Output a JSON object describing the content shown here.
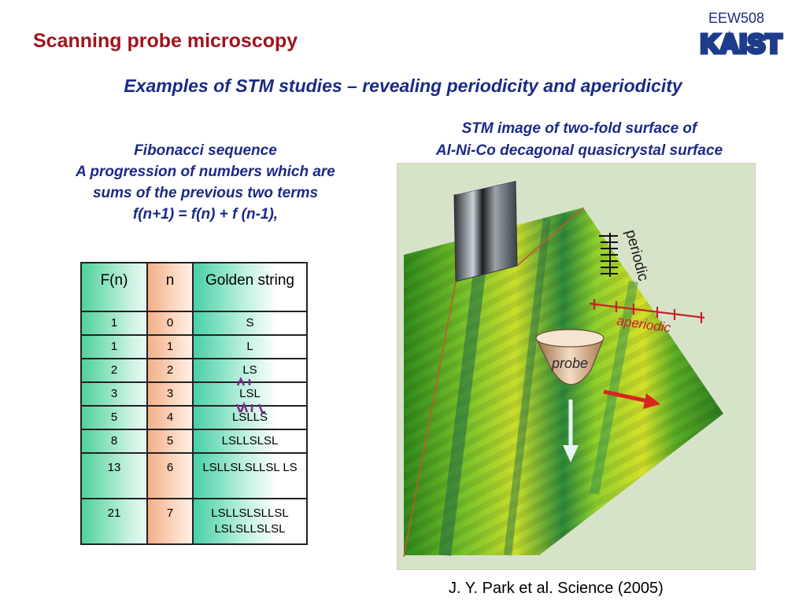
{
  "header": {
    "course_code": "EEW508",
    "logo_text": "KAIST",
    "title": "Scanning probe microscopy"
  },
  "subtitle": "Examples of STM studies – revealing periodicity and aperiodicity",
  "fibonacci": {
    "heading": "Fibonacci sequence",
    "line1": "A progression of numbers which are",
    "line2": "sums of the previous two terms",
    "formula": "f(n+1) = f(n) + f (n-1),"
  },
  "table": {
    "headers": [
      "F(n)",
      "n",
      "Golden string"
    ],
    "rows": [
      [
        "1",
        "0",
        "S"
      ],
      [
        "1",
        "1",
        "L"
      ],
      [
        "2",
        "2",
        "LS"
      ],
      [
        "3",
        "3",
        "LSL"
      ],
      [
        "5",
        "4",
        "LSLLS"
      ],
      [
        "8",
        "5",
        "LSLLSLSL"
      ],
      [
        "13",
        "6",
        "LSLLSLSLLSL LS"
      ],
      [
        "21",
        "7",
        "LSLLSLSLLSL LSLSLLSLSL"
      ]
    ]
  },
  "stm": {
    "caption_line1": "STM image of two-fold surface of",
    "caption_line2": "Al-Ni-Co decagonal quasicrystal surface",
    "label_periodic": "periodic",
    "label_aperiodic": "aperiodic",
    "label_probe": "probe"
  },
  "citation": "J. Y. Park et al. Science (2005)"
}
